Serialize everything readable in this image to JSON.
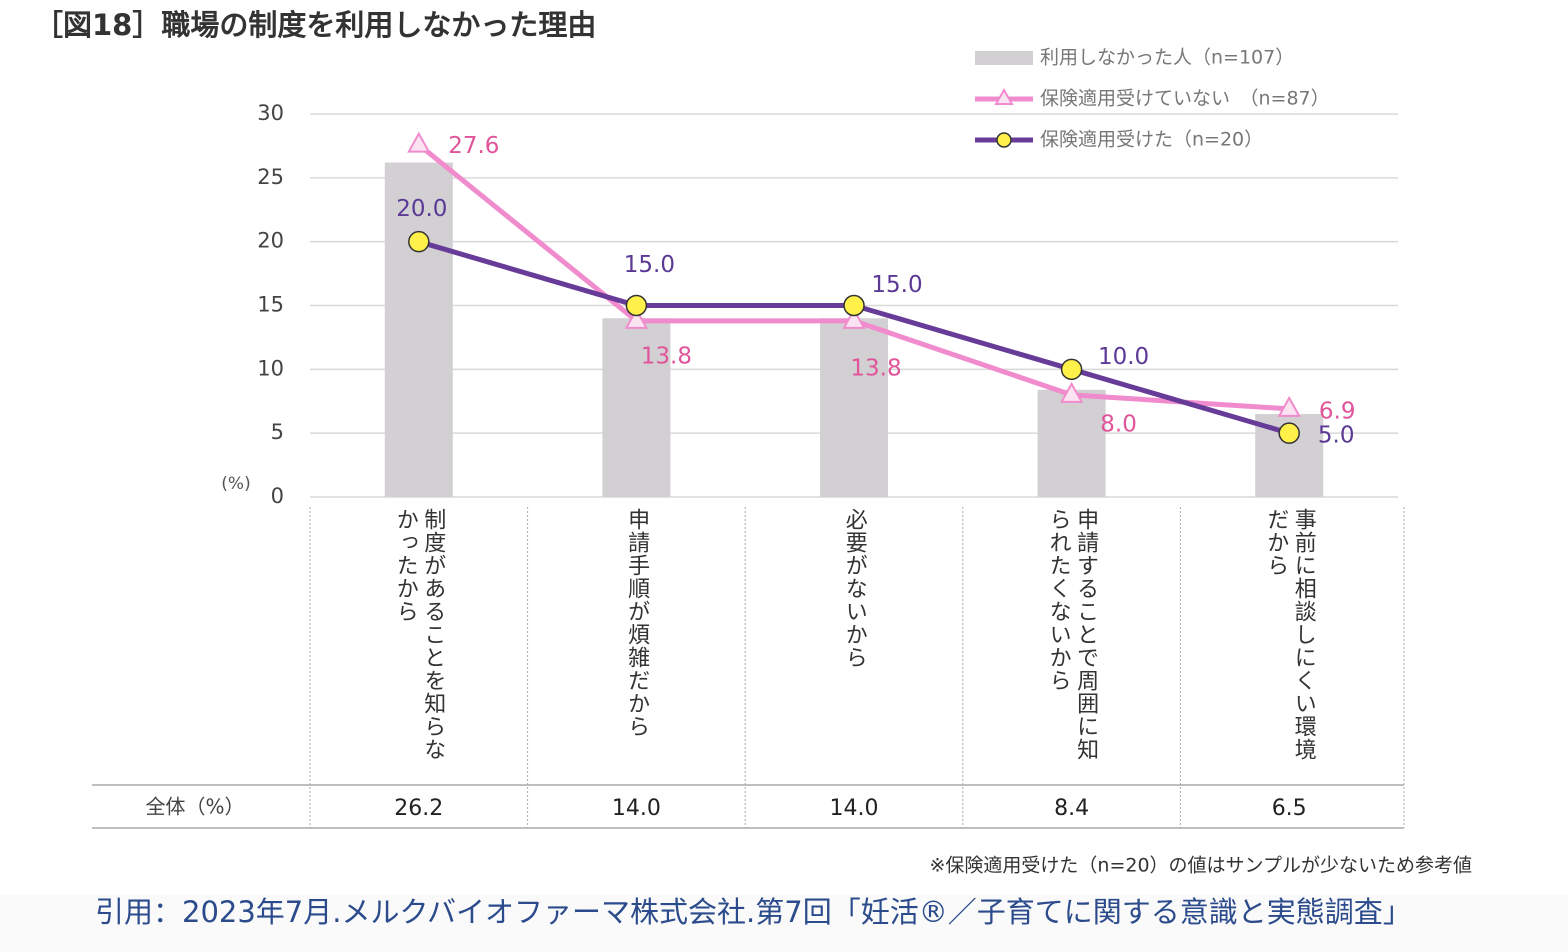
{
  "chart_data": {
    "type": "bar_line",
    "title": "［図18］職場の制度を利用しなかった理由",
    "categories": [
      "制度があることを知らなかったから",
      "申請手順が煩雑だから",
      "必要がないから",
      "申請することで周囲に知られたくないから",
      "事前に相談しにくい環境だから"
    ],
    "series": [
      {
        "name": "利用しなかった人（n=107）",
        "type": "bar",
        "color": "#d3d0d3",
        "values": [
          26.2,
          14.0,
          14.0,
          8.4,
          6.5
        ],
        "value_labels": [
          "26.2",
          "14.0",
          "14.0",
          "8.4",
          "6.5"
        ]
      },
      {
        "name": "保険適用受けていない　（n=87）",
        "type": "line",
        "marker": "triangle",
        "color": "#f08ccd",
        "label_color": "#e0559a",
        "values": [
          27.6,
          13.8,
          13.8,
          8.0,
          6.9
        ],
        "value_labels": [
          "27.6",
          "13.8",
          "13.8",
          "8.0",
          "6.9"
        ]
      },
      {
        "name": "保険適用受けた（n=20）",
        "type": "line",
        "marker": "circle",
        "color": "#673b98",
        "label_color": "#5b3a96",
        "values": [
          20.0,
          15.0,
          15.0,
          10.0,
          5.0
        ],
        "value_labels": [
          "20.0",
          "15.0",
          "15.0",
          "10.0",
          "5.0"
        ]
      }
    ],
    "ylim": [
      0,
      30
    ],
    "yticks": [
      0,
      5,
      10,
      15,
      20,
      25,
      30
    ],
    "y_unit": "(%)",
    "grid": true,
    "legend": "top-right",
    "table_label": "全体（%）",
    "note": "※保険適用受けた（n=20）の値はサンプルが少ないため参考値",
    "source": "引用：2023年7月.メルクバイオファーマ株式会社.第7回「妊活®／子育てに関する意識と実態調査」"
  }
}
